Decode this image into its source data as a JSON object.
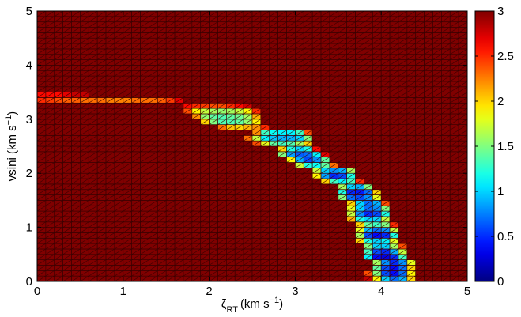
{
  "chart_data": {
    "type": "heatmap",
    "title": "",
    "xlabel": {
      "main": "ζ",
      "sub": "RT",
      "unit": "(km s",
      "sup": "−1",
      "close": ")"
    },
    "ylabel": {
      "main": "vsini (km s",
      "sup": "−1",
      "close": ")"
    },
    "xlim": [
      0,
      5
    ],
    "ylim": [
      0,
      5
    ],
    "xticks": [
      "0",
      "1",
      "2",
      "3",
      "4",
      "5"
    ],
    "yticks": [
      "0",
      "1",
      "2",
      "3",
      "4",
      "5"
    ],
    "grid": {
      "x_start": 0,
      "x_step": 0.1,
      "y_start": 0,
      "y_step": 0.1
    },
    "default_value": 3,
    "colorbar": {
      "colormap": "jet",
      "range": [
        0,
        3
      ],
      "ticks": [
        "0",
        "0.5",
        "1",
        "1.5",
        "2",
        "2.5",
        "3"
      ]
    },
    "cells": [
      [
        0,
        34,
        2.6
      ],
      [
        1,
        34,
        2.6
      ],
      [
        2,
        34,
        2.6
      ],
      [
        3,
        34,
        2.7
      ],
      [
        4,
        34,
        2.8
      ],
      [
        5,
        34,
        2.8
      ],
      [
        0,
        33,
        2.5
      ],
      [
        1,
        33,
        2.45
      ],
      [
        2,
        33,
        2.4
      ],
      [
        3,
        33,
        2.35
      ],
      [
        4,
        33,
        2.35
      ],
      [
        5,
        33,
        2.3
      ],
      [
        6,
        33,
        2.3
      ],
      [
        7,
        33,
        2.3
      ],
      [
        8,
        33,
        2.25
      ],
      [
        9,
        33,
        2.25
      ],
      [
        10,
        33,
        2.25
      ],
      [
        11,
        33,
        2.3
      ],
      [
        12,
        33,
        2.3
      ],
      [
        13,
        33,
        2.3
      ],
      [
        14,
        33,
        2.35
      ],
      [
        15,
        33,
        2.45
      ],
      [
        16,
        33,
        2.7
      ],
      [
        17,
        32,
        2.6
      ],
      [
        18,
        32,
        2.5
      ],
      [
        19,
        32,
        2.45
      ],
      [
        20,
        32,
        2.4
      ],
      [
        21,
        32,
        2.4
      ],
      [
        22,
        32,
        2.5
      ],
      [
        23,
        32,
        2.6
      ],
      [
        24,
        32,
        2.75
      ],
      [
        17,
        31,
        2.4
      ],
      [
        18,
        31,
        1.9
      ],
      [
        19,
        31,
        1.7
      ],
      [
        20,
        31,
        1.6
      ],
      [
        21,
        31,
        1.55
      ],
      [
        22,
        31,
        1.6
      ],
      [
        23,
        31,
        1.7
      ],
      [
        24,
        31,
        1.9
      ],
      [
        25,
        31,
        2.5
      ],
      [
        18,
        30,
        2.2
      ],
      [
        19,
        30,
        1.55
      ],
      [
        20,
        30,
        1.4
      ],
      [
        21,
        30,
        1.35
      ],
      [
        22,
        30,
        1.4
      ],
      [
        23,
        30,
        1.45
      ],
      [
        24,
        30,
        1.6
      ],
      [
        25,
        30,
        2.1
      ],
      [
        19,
        29,
        2.0
      ],
      [
        20,
        29,
        1.5
      ],
      [
        21,
        29,
        1.35
      ],
      [
        22,
        29,
        1.35
      ],
      [
        23,
        29,
        1.4
      ],
      [
        24,
        29,
        1.55
      ],
      [
        25,
        29,
        1.9
      ],
      [
        21,
        28,
        2.3
      ],
      [
        22,
        28,
        2.05
      ],
      [
        23,
        28,
        2.0
      ],
      [
        24,
        28,
        2.1
      ],
      [
        25,
        28,
        2.2
      ],
      [
        26,
        28,
        2.5
      ],
      [
        25,
        27,
        2.2
      ],
      [
        26,
        27,
        1.3
      ],
      [
        27,
        27,
        1.15
      ],
      [
        28,
        27,
        1.1
      ],
      [
        29,
        27,
        1.1
      ],
      [
        30,
        27,
        1.3
      ],
      [
        31,
        27,
        2.4
      ],
      [
        24,
        26,
        2.3
      ],
      [
        25,
        26,
        1.7
      ],
      [
        26,
        26,
        1.1
      ],
      [
        27,
        26,
        0.95
      ],
      [
        28,
        26,
        0.9
      ],
      [
        29,
        26,
        0.9
      ],
      [
        30,
        26,
        1.0
      ],
      [
        31,
        26,
        1.5
      ],
      [
        25,
        25,
        2.4
      ],
      [
        26,
        25,
        1.8
      ],
      [
        27,
        25,
        1.4
      ],
      [
        28,
        25,
        1.3
      ],
      [
        29,
        25,
        1.35
      ],
      [
        30,
        25,
        1.6
      ],
      [
        31,
        25,
        2.0
      ],
      [
        28,
        24,
        2.0
      ],
      [
        29,
        24,
        1.2
      ],
      [
        30,
        24,
        1.0
      ],
      [
        31,
        24,
        1.2
      ],
      [
        32,
        24,
        2.6
      ],
      [
        28,
        23,
        1.5
      ],
      [
        29,
        23,
        0.85
      ],
      [
        30,
        23,
        0.65
      ],
      [
        31,
        23,
        0.7
      ],
      [
        32,
        23,
        1.1
      ],
      [
        33,
        23,
        2.7
      ],
      [
        29,
        22,
        1.9
      ],
      [
        30,
        22,
        0.9
      ],
      [
        31,
        22,
        0.6
      ],
      [
        32,
        22,
        0.8
      ],
      [
        33,
        22,
        1.4
      ],
      [
        30,
        21,
        1.7
      ],
      [
        31,
        21,
        1.2
      ],
      [
        32,
        21,
        1.15
      ],
      [
        33,
        21,
        1.4
      ],
      [
        34,
        21,
        2.3
      ],
      [
        32,
        20,
        1.7
      ],
      [
        33,
        20,
        1.0
      ],
      [
        34,
        20,
        0.8
      ],
      [
        35,
        20,
        0.9
      ],
      [
        36,
        20,
        1.6
      ],
      [
        32,
        19,
        1.9
      ],
      [
        33,
        19,
        0.85
      ],
      [
        34,
        19,
        0.5
      ],
      [
        35,
        19,
        0.6
      ],
      [
        36,
        19,
        1.2
      ],
      [
        33,
        18,
        2.0
      ],
      [
        34,
        18,
        1.3
      ],
      [
        35,
        18,
        1.1
      ],
      [
        36,
        18,
        1.3
      ],
      [
        37,
        18,
        2.5
      ],
      [
        35,
        17,
        1.6
      ],
      [
        36,
        17,
        1.0
      ],
      [
        37,
        17,
        0.9
      ],
      [
        38,
        17,
        1.5
      ],
      [
        35,
        16,
        1.2
      ],
      [
        36,
        16,
        0.5
      ],
      [
        37,
        16,
        0.45
      ],
      [
        38,
        16,
        0.7
      ],
      [
        39,
        16,
        2.0
      ],
      [
        35,
        15,
        1.5
      ],
      [
        36,
        15,
        0.7
      ],
      [
        37,
        15,
        0.6
      ],
      [
        38,
        15,
        0.8
      ],
      [
        39,
        15,
        1.8
      ],
      [
        36,
        14,
        2.0
      ],
      [
        37,
        14,
        1.0
      ],
      [
        38,
        14,
        0.7
      ],
      [
        39,
        14,
        0.9
      ],
      [
        40,
        14,
        2.4
      ],
      [
        36,
        13,
        1.8
      ],
      [
        37,
        13,
        1.0
      ],
      [
        38,
        13,
        0.7
      ],
      [
        39,
        13,
        0.8
      ],
      [
        40,
        13,
        1.5
      ],
      [
        36,
        12,
        1.7
      ],
      [
        37,
        12,
        0.8
      ],
      [
        38,
        12,
        0.5
      ],
      [
        39,
        12,
        0.6
      ],
      [
        40,
        12,
        1.2
      ],
      [
        36,
        11,
        2.1
      ],
      [
        37,
        11,
        1.2
      ],
      [
        38,
        11,
        1.0
      ],
      [
        39,
        11,
        1.0
      ],
      [
        40,
        11,
        1.7
      ],
      [
        37,
        10,
        2.0
      ],
      [
        38,
        10,
        1.4
      ],
      [
        39,
        10,
        1.3
      ],
      [
        40,
        10,
        1.5
      ],
      [
        41,
        10,
        2.5
      ],
      [
        37,
        9,
        1.8
      ],
      [
        38,
        9,
        0.9
      ],
      [
        39,
        9,
        0.7
      ],
      [
        40,
        9,
        0.8
      ],
      [
        41,
        9,
        1.7
      ],
      [
        37,
        8,
        1.6
      ],
      [
        38,
        8,
        0.6
      ],
      [
        39,
        8,
        0.4
      ],
      [
        40,
        8,
        0.5
      ],
      [
        41,
        8,
        1.2
      ],
      [
        37,
        7,
        2.0
      ],
      [
        38,
        7,
        1.2
      ],
      [
        39,
        7,
        1.0
      ],
      [
        40,
        7,
        1.1
      ],
      [
        41,
        7,
        1.8
      ],
      [
        38,
        6,
        1.5
      ],
      [
        39,
        6,
        1.0
      ],
      [
        40,
        6,
        1.0
      ],
      [
        41,
        6,
        1.6
      ],
      [
        42,
        6,
        2.4
      ],
      [
        38,
        5,
        1.3
      ],
      [
        39,
        5,
        0.6
      ],
      [
        40,
        5,
        0.5
      ],
      [
        41,
        5,
        0.9
      ],
      [
        42,
        5,
        1.7
      ],
      [
        38,
        4,
        1.1
      ],
      [
        39,
        4,
        0.4
      ],
      [
        40,
        4,
        0.3
      ],
      [
        41,
        4,
        0.5
      ],
      [
        42,
        4,
        1.3
      ],
      [
        39,
        3,
        1.6
      ],
      [
        40,
        3,
        0.8
      ],
      [
        41,
        3,
        0.5
      ],
      [
        42,
        3,
        0.8
      ],
      [
        43,
        3,
        1.8
      ],
      [
        39,
        2,
        1.4
      ],
      [
        40,
        2,
        0.6
      ],
      [
        41,
        2,
        0.4
      ],
      [
        42,
        2,
        0.7
      ],
      [
        43,
        2,
        2.0
      ],
      [
        38,
        1,
        2.4
      ],
      [
        39,
        1,
        1.5
      ],
      [
        40,
        1,
        0.6
      ],
      [
        41,
        1,
        0.4
      ],
      [
        42,
        1,
        0.7
      ],
      [
        43,
        1,
        1.9
      ],
      [
        38,
        0,
        2.8
      ],
      [
        39,
        0,
        1.9
      ],
      [
        40,
        0,
        1.0
      ],
      [
        41,
        0,
        0.7
      ],
      [
        42,
        0,
        0.9
      ],
      [
        43,
        0,
        2.0
      ]
    ]
  }
}
